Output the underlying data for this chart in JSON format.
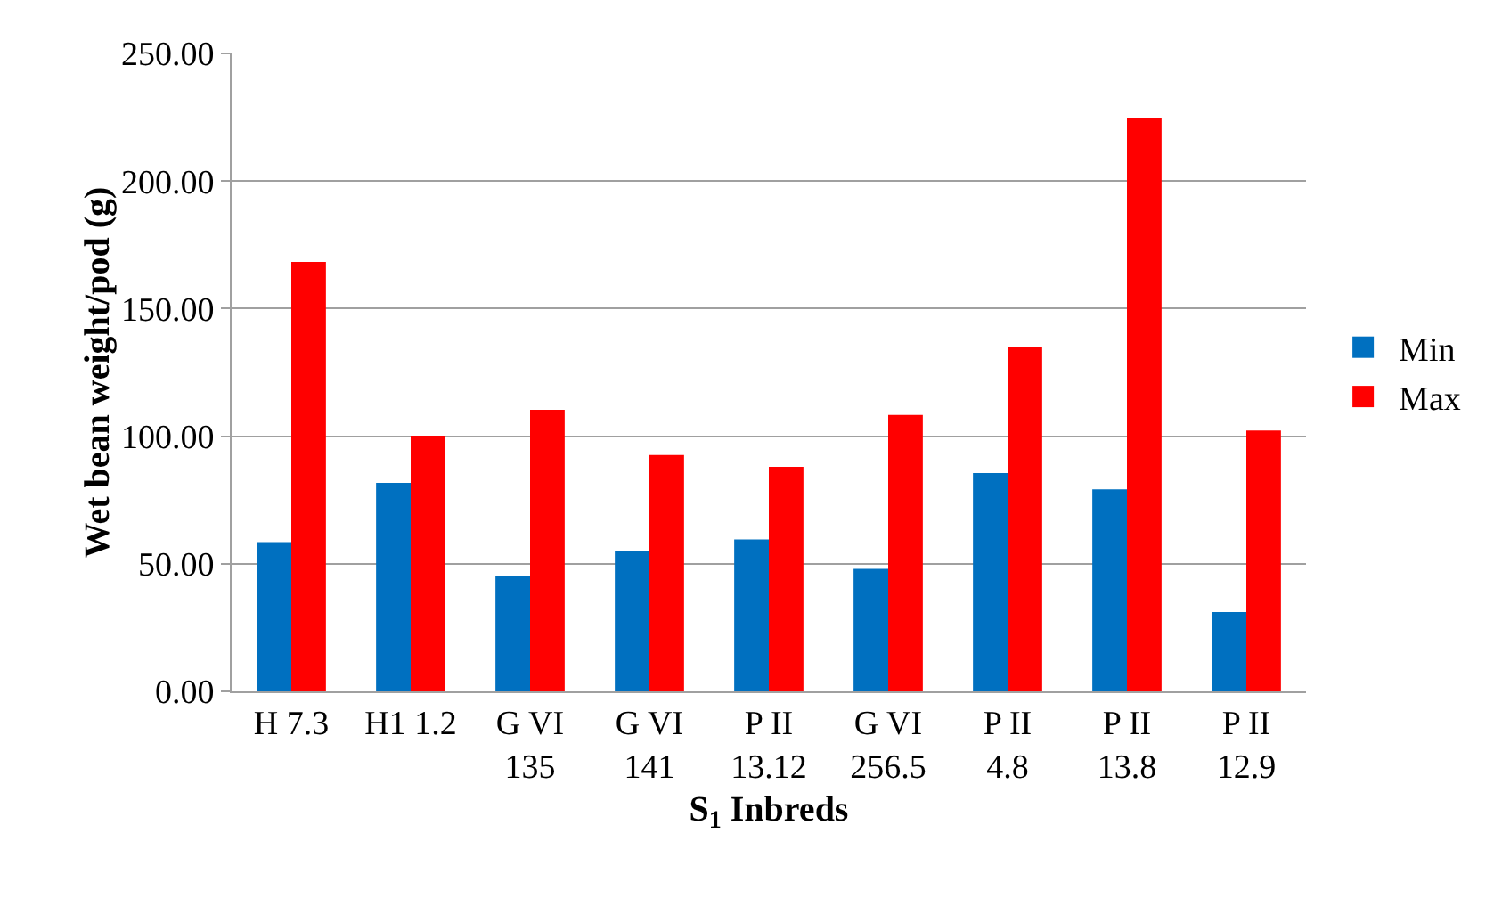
{
  "chart_data": {
    "type": "bar",
    "categories": [
      "H 7.3",
      "H1 1.2",
      "G VI\n135",
      "G VI\n141",
      "P II\n13.12",
      "G VI\n256.5",
      "P II\n4.8",
      "P II\n13.8",
      "P II\n12.9"
    ],
    "series": [
      {
        "name": "Min",
        "color": "#0070c0",
        "values": [
          58.5,
          81.7,
          45.0,
          55.2,
          59.5,
          48.0,
          85.5,
          79.2,
          31.1
        ]
      },
      {
        "name": "Max",
        "color": "#ff0000",
        "values": [
          168.3,
          100.2,
          110.3,
          92.6,
          88.0,
          108.3,
          135.0,
          224.7,
          102.2
        ]
      }
    ],
    "xlabel": "S$_{1}$ Inbreds",
    "ylabel": "Wet bean weight/pod (g)",
    "ylim": [
      0,
      250
    ],
    "yticks": [
      {
        "value": 0,
        "label": "0.00"
      },
      {
        "value": 50,
        "label": "50.00"
      },
      {
        "value": 100,
        "label": "100.00"
      },
      {
        "value": 150,
        "label": "150.00"
      },
      {
        "value": 200,
        "label": "200.00"
      },
      {
        "value": 250,
        "label": "250.00"
      }
    ],
    "grid": "y",
    "legend": "right"
  }
}
